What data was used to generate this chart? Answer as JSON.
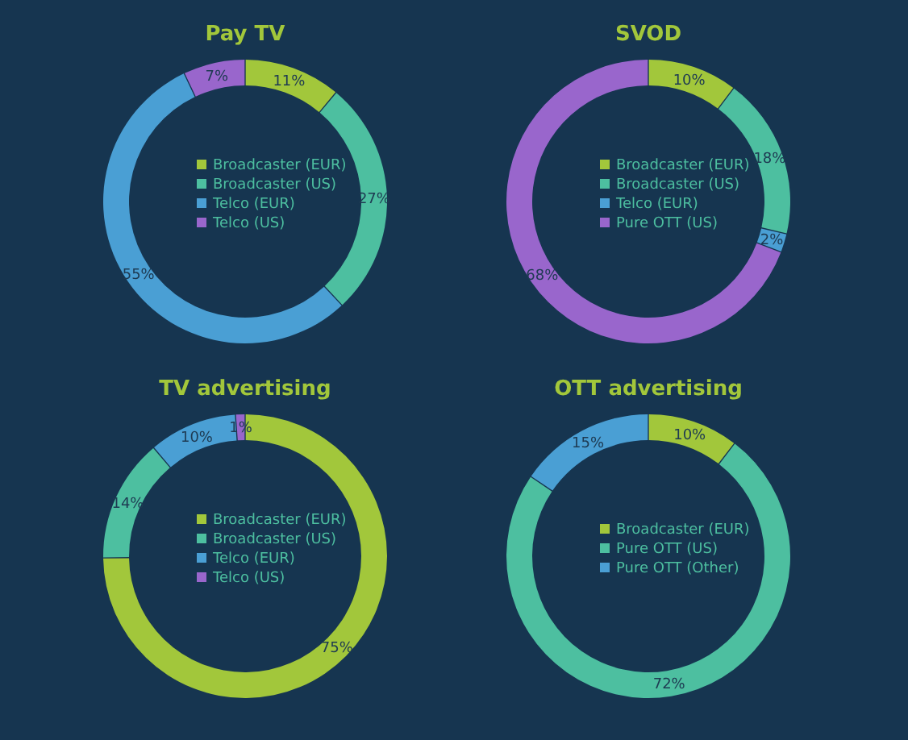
{
  "chart_data": [
    {
      "type": "donut",
      "title": "Pay TV",
      "categories": [
        "Broadcaster (EUR)",
        "Broadcaster (US)",
        "Telco (EUR)",
        "Telco (US)"
      ],
      "values": [
        11,
        27,
        55,
        7
      ],
      "value_labels": [
        "11%",
        "27%",
        "55%",
        "7%"
      ],
      "colors": [
        "#a2c73b",
        "#4dbfa0",
        "#4a9fd4",
        "#9966cc"
      ],
      "legend": "center"
    },
    {
      "type": "donut",
      "title": "SVOD",
      "categories": [
        "Broadcaster (EUR)",
        "Broadcaster (US)",
        "Telco (EUR)",
        "Pure OTT (US)"
      ],
      "values": [
        10,
        18,
        2,
        68
      ],
      "value_labels": [
        "10%",
        "18%",
        "2%",
        "68%"
      ],
      "colors": [
        "#a2c73b",
        "#4dbfa0",
        "#4a9fd4",
        "#9966cc"
      ],
      "legend": "center"
    },
    {
      "type": "donut",
      "title": "TV advertising",
      "categories": [
        "Broadcaster (EUR)",
        "Broadcaster (US)",
        "Telco (EUR)",
        "Telco (US)"
      ],
      "values": [
        75,
        14,
        10,
        1
      ],
      "value_labels": [
        "75%",
        "14%",
        "10%",
        "1%"
      ],
      "colors": [
        "#a2c73b",
        "#4dbfa0",
        "#4a9fd4",
        "#9966cc"
      ],
      "legend": "center"
    },
    {
      "type": "donut",
      "title": "OTT advertising",
      "categories": [
        "Broadcaster (EUR)",
        "Pure OTT (US)",
        "Pure OTT (Other)"
      ],
      "values": [
        10,
        72,
        15
      ],
      "value_labels": [
        "10%",
        "72%",
        "15%"
      ],
      "colors": [
        "#a2c73b",
        "#4dbfa0",
        "#4a9fd4"
      ],
      "legend": "center"
    }
  ]
}
